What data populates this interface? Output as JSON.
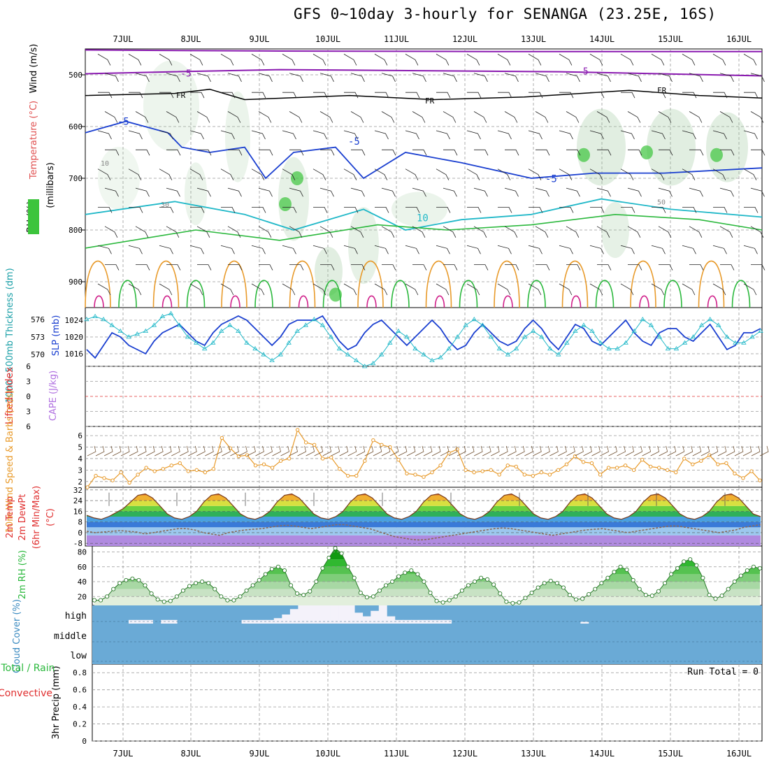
{
  "title": "GFS 0~10day 3-hourly for SENANGA (23.25E, 16S)",
  "dates": [
    "7JUL",
    "8JUL",
    "9JUL",
    "10JUL",
    "11JUL",
    "12JUL",
    "13JUL",
    "14JUL",
    "15JUL",
    "16JUL"
  ],
  "colors": {
    "grid": "#999999",
    "blue": "#1a3fd0",
    "cyan": "#20b8c8",
    "orange": "#e89a2a",
    "green": "#2ab83c",
    "purple": "#8a1ab0",
    "red": "#e03030",
    "cloud": "#6aaad6",
    "violet": "#b070e0",
    "teal": "#1ca0a8"
  },
  "chart_data": [
    {
      "type": "contour",
      "panel": "upper-air",
      "axis_title": "(millibars)",
      "y_ticks": [
        "500",
        "600",
        "700",
        "800",
        "900"
      ],
      "ylim": [
        450,
        950
      ],
      "legend_labels": [
        "Wind (m/s)",
        "Temperature (°C)",
        "RH (%)"
      ],
      "contour_labels": {
        "purple": "-5",
        "black": "FR",
        "blue": "-5",
        "cyan": "10",
        "rh_low": "10",
        "rh_mid": "30",
        "rh_high": "50"
      }
    },
    {
      "type": "line",
      "panel": "slp-thickness",
      "ylabel_left": "1000~500mb Thickness (dm)",
      "ylabel_right": "SLP (mb)",
      "left_ticks": [
        "576",
        "573",
        "570"
      ],
      "right_ticks": [
        "1024",
        "1020",
        "1016"
      ],
      "ylim_left": [
        568,
        578
      ],
      "ylim_right": [
        1013,
        1027
      ],
      "series": [
        {
          "name": "SLP",
          "values": [
            1017,
            1015,
            1018,
            1021,
            1020,
            1018,
            1017,
            1016,
            1019,
            1021,
            1022,
            1023,
            1021,
            1019,
            1018,
            1021,
            1023,
            1024,
            1025,
            1024,
            1022,
            1020,
            1018,
            1020,
            1023,
            1024,
            1024,
            1024,
            1025,
            1022,
            1019,
            1017,
            1018,
            1021,
            1023,
            1024,
            1022,
            1020,
            1018,
            1020,
            1022,
            1024,
            1022,
            1019,
            1017,
            1018,
            1021,
            1023,
            1021,
            1019,
            1018,
            1019,
            1022,
            1024,
            1022,
            1019,
            1017,
            1020,
            1023,
            1022,
            1019,
            1018,
            1020,
            1022,
            1024,
            1021,
            1019,
            1018,
            1021,
            1022,
            1022,
            1020,
            1019,
            1021,
            1023,
            1020,
            1017,
            1018,
            1021,
            1021,
            1022
          ]
        },
        {
          "name": "Thickness",
          "values": [
            576,
            576.5,
            576,
            575,
            574,
            573,
            573.5,
            574,
            575,
            576.5,
            577,
            575,
            573,
            572,
            571,
            572,
            574,
            575,
            574,
            572,
            571,
            570,
            569,
            570,
            572,
            574,
            575,
            576,
            575,
            573,
            571,
            570,
            569,
            568,
            568.5,
            570,
            572,
            574,
            573,
            571,
            570,
            569,
            569.5,
            571,
            573,
            575,
            576,
            575,
            573,
            571,
            570,
            571,
            573,
            574,
            573,
            571,
            570,
            572,
            574,
            575,
            574,
            572,
            571,
            571,
            572,
            574,
            576,
            575,
            573,
            571,
            571,
            572,
            573,
            575,
            576,
            575,
            573,
            572,
            572,
            573,
            574
          ]
        }
      ]
    },
    {
      "type": "line",
      "panel": "stability",
      "ylabel": "Lifted Index",
      "ylabel2": "CAPE (J/kg)",
      "y_ticks": [
        "6",
        "3",
        "0",
        "3",
        "6"
      ],
      "ylim": [
        -6,
        6
      ]
    },
    {
      "type": "line",
      "panel": "wind10m",
      "ylabel": "10m Wind Speed & Barbs (m/s)",
      "y_ticks": [
        "6",
        "5",
        "4",
        "3",
        "2"
      ],
      "ylim": [
        1.5,
        6.8
      ],
      "values": [
        1.5,
        2.5,
        2.3,
        2.1,
        2.8,
        1.9,
        2.6,
        3.2,
        2.9,
        3.1,
        3.4,
        3.6,
        2.9,
        3.0,
        2.8,
        3.1,
        5.8,
        4.9,
        4.2,
        4.3,
        3.4,
        3.5,
        3.2,
        3.8,
        4.0,
        6.5,
        5.4,
        5.2,
        4.0,
        4.1,
        3.1,
        2.5,
        2.5,
        3.8,
        5.6,
        5.2,
        5.0,
        3.9,
        2.7,
        2.6,
        2.4,
        2.8,
        3.4,
        4.5,
        4.8,
        3.0,
        2.8,
        2.9,
        3.0,
        2.6,
        3.4,
        3.3,
        2.6,
        2.5,
        2.8,
        2.6,
        3.0,
        3.5,
        4.2,
        3.7,
        3.6,
        2.6,
        3.2,
        3.2,
        3.4,
        3.0,
        3.9,
        3.3,
        3.2,
        3.0,
        2.8,
        4.0,
        3.5,
        3.8,
        4.3,
        3.5,
        3.6,
        2.7,
        2.3,
        2.9,
        2.1
      ]
    },
    {
      "type": "area",
      "panel": "temp2m",
      "ylabel": "2m Temp 2m DewPt (6hr Min/Max) (°C)",
      "y_ticks": [
        "32",
        "24",
        "16",
        "8",
        "0",
        "-8"
      ],
      "ylim": [
        -10,
        34
      ],
      "temp": [
        13,
        11,
        10,
        12,
        15,
        18,
        23,
        28,
        29,
        26,
        20,
        14,
        11,
        10,
        12,
        16,
        23,
        28,
        29,
        26,
        20,
        14,
        11,
        10,
        12,
        16,
        23,
        28,
        29,
        26,
        20,
        14,
        11,
        10,
        12,
        16,
        23,
        28,
        29,
        26,
        20,
        14,
        11,
        10,
        12,
        16,
        23,
        28,
        29,
        26,
        20,
        14,
        11,
        10,
        12,
        16,
        23,
        28,
        29,
        26,
        20,
        14,
        11,
        10,
        12,
        16,
        23,
        28,
        29,
        26,
        20,
        14,
        11,
        10,
        12,
        16,
        23,
        28,
        29,
        26,
        20,
        14,
        11,
        10,
        12,
        16,
        23,
        28,
        29,
        26,
        20,
        14,
        12
      ],
      "dewpt": [
        1,
        0,
        0.5,
        1,
        1.5,
        1,
        0.5,
        -1,
        0,
        1,
        2,
        3,
        3,
        2,
        0,
        -1,
        -2,
        0,
        1,
        2,
        2.5,
        3,
        4,
        5,
        5.5,
        5,
        4,
        3,
        4,
        5,
        6,
        6,
        5,
        4,
        3,
        1,
        -1,
        -3,
        -4,
        -5,
        -5.5,
        -5,
        -4,
        -3,
        -2,
        -1,
        0,
        1,
        2,
        3,
        3.5,
        3,
        2,
        1,
        0,
        -1,
        -2,
        -1,
        0,
        1,
        2,
        2.5,
        3,
        2,
        1,
        0,
        1,
        2,
        3,
        4,
        5,
        5,
        4,
        3,
        2,
        1,
        0,
        1,
        2,
        4,
        5,
        6
      ]
    },
    {
      "type": "area",
      "panel": "rh2m",
      "ylabel": "2m RH (%)",
      "y_ticks": [
        "80",
        "60",
        "40",
        "20"
      ],
      "ylim": [
        8,
        88
      ],
      "values": [
        15,
        15,
        20,
        30,
        38,
        42,
        44,
        42,
        35,
        24,
        16,
        13,
        14,
        20,
        28,
        34,
        38,
        40,
        38,
        30,
        20,
        15,
        15,
        20,
        28,
        35,
        42,
        50,
        57,
        60,
        55,
        35,
        24,
        22,
        27,
        40,
        58,
        72,
        85,
        78,
        60,
        45,
        25,
        19,
        20,
        28,
        35,
        40,
        47,
        52,
        55,
        50,
        40,
        25,
        14,
        12,
        15,
        20,
        28,
        35,
        40,
        45,
        43,
        36,
        24,
        13,
        11,
        12,
        18,
        25,
        32,
        38,
        41,
        38,
        32,
        22,
        16,
        17,
        23,
        30,
        38,
        45,
        53,
        60,
        56,
        42,
        30,
        22,
        21,
        27,
        38,
        50,
        58,
        67,
        70,
        62,
        45,
        22,
        17,
        21,
        30,
        40,
        48,
        55,
        60,
        58
      ]
    },
    {
      "type": "bar",
      "panel": "cloud",
      "ylabel": "Cloud Cover (%)",
      "levels": [
        "high",
        "middle",
        "low"
      ],
      "high_cover": [
        0,
        0,
        0,
        0,
        0,
        0.2,
        0.2,
        0.2,
        0,
        0.2,
        0.2,
        0,
        0,
        0,
        0,
        0,
        0,
        0,
        0,
        0.2,
        0.2,
        0.2,
        0.2,
        0.3,
        0.5,
        0.8,
        1,
        1,
        1,
        1,
        1,
        1,
        1,
        0.6,
        0.4,
        0.7,
        1,
        0.4,
        0.2,
        0.2,
        0.2,
        0.2,
        0.2,
        0.2,
        0.2,
        0,
        0,
        0,
        0,
        0,
        0,
        0,
        0,
        0,
        0,
        0,
        0,
        0,
        0,
        0,
        0,
        0.1,
        0,
        0,
        0,
        0,
        0,
        0,
        0,
        0,
        0,
        0,
        0,
        0,
        0,
        0,
        0,
        0,
        0,
        0,
        0,
        0,
        0,
        0
      ]
    },
    {
      "type": "bar",
      "panel": "precip",
      "ylabel": "3hr Precip (mm)",
      "legend": [
        "Total / Rain",
        "Convective"
      ],
      "y_ticks": [
        "0.8",
        "0.6",
        "0.4",
        "0.2",
        "0"
      ],
      "ylim": [
        0,
        0.9
      ],
      "run_total": "Run Total = 0",
      "values": []
    }
  ]
}
